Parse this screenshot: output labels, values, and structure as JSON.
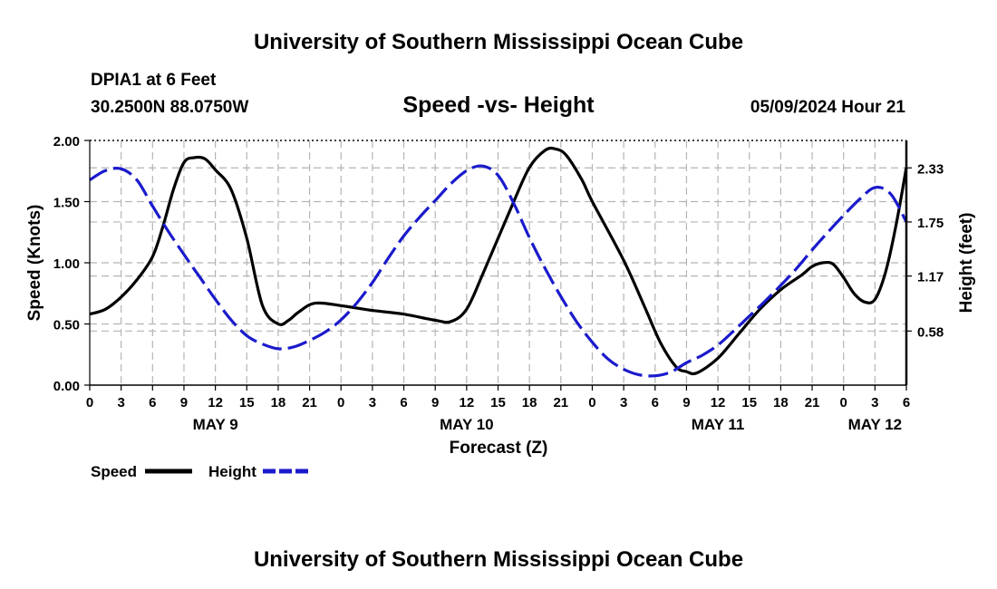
{
  "header": {
    "title": "University of Southern Mississippi Ocean Cube",
    "station": "DPIA1 at 6 Feet",
    "coords": "30.2500N  88.0750W",
    "subtitle": "Speed -vs- Height",
    "datetime": "05/09/2024 Hour 21"
  },
  "footer": {
    "title": "University of Southern Mississippi Ocean Cube"
  },
  "colors": {
    "speed": "#000000",
    "height": "#1a1acc",
    "grid": "#b4b4b4"
  },
  "legend": {
    "speed_label": "Speed",
    "height_label": "Height"
  },
  "chart_data": {
    "type": "line",
    "title": "Speed -vs- Height",
    "xlabel": "Forecast (Z)",
    "ylabel": "Speed (Knots)",
    "y2label": "Height (feet)",
    "xlim": [
      0,
      78
    ],
    "ylim": [
      0,
      2.0
    ],
    "y2lim": [
      0,
      2.624
    ],
    "x_ticks": [
      {
        "x": 0,
        "label": "0"
      },
      {
        "x": 3,
        "label": "3"
      },
      {
        "x": 6,
        "label": "6"
      },
      {
        "x": 9,
        "label": "9"
      },
      {
        "x": 12,
        "label": "12"
      },
      {
        "x": 15,
        "label": "15"
      },
      {
        "x": 18,
        "label": "18"
      },
      {
        "x": 21,
        "label": "21"
      },
      {
        "x": 24,
        "label": "0"
      },
      {
        "x": 27,
        "label": "3"
      },
      {
        "x": 30,
        "label": "6"
      },
      {
        "x": 33,
        "label": "9"
      },
      {
        "x": 36,
        "label": "12"
      },
      {
        "x": 39,
        "label": "15"
      },
      {
        "x": 42,
        "label": "18"
      },
      {
        "x": 45,
        "label": "21"
      },
      {
        "x": 48,
        "label": "0"
      },
      {
        "x": 51,
        "label": "3"
      },
      {
        "x": 54,
        "label": "6"
      },
      {
        "x": 57,
        "label": "9"
      },
      {
        "x": 60,
        "label": "12"
      },
      {
        "x": 63,
        "label": "15"
      },
      {
        "x": 66,
        "label": "18"
      },
      {
        "x": 69,
        "label": "21"
      },
      {
        "x": 72,
        "label": "0"
      },
      {
        "x": 75,
        "label": "3"
      },
      {
        "x": 78,
        "label": "6"
      }
    ],
    "date_labels": [
      {
        "x": 12,
        "label": "MAY 9"
      },
      {
        "x": 36,
        "label": "MAY 10"
      },
      {
        "x": 60,
        "label": "MAY 11"
      },
      {
        "x": 75,
        "label": "MAY 12"
      }
    ],
    "y_ticks": [
      {
        "y": 0.0,
        "label": "0.00"
      },
      {
        "y": 0.5,
        "label": "0.50"
      },
      {
        "y": 1.0,
        "label": "1.00"
      },
      {
        "y": 1.5,
        "label": "1.50"
      },
      {
        "y": 2.0,
        "label": "2.00"
      }
    ],
    "y2_ticks": [
      {
        "y": 0.58,
        "label": "0.58"
      },
      {
        "y": 1.17,
        "label": "1.17"
      },
      {
        "y": 1.75,
        "label": "1.75"
      },
      {
        "y": 2.33,
        "label": "2.33"
      }
    ],
    "series": [
      {
        "name": "Speed",
        "axis": "left",
        "style": "solid",
        "x": [
          0,
          1.5,
          3,
          4.5,
          6,
          7,
          8,
          9,
          10,
          11,
          12,
          13.5,
          15,
          16.5,
          18,
          19,
          20,
          21.5,
          24,
          27,
          30,
          33,
          34.5,
          36,
          37.5,
          39,
          40.5,
          42,
          43.5,
          44.5,
          45.5,
          47,
          48,
          51,
          53,
          54.5,
          56,
          57,
          58,
          60,
          62,
          64,
          66,
          68,
          69,
          70,
          71,
          72,
          73,
          74,
          75,
          76,
          77,
          78
        ],
        "y": [
          0.58,
          0.62,
          0.72,
          0.86,
          1.05,
          1.3,
          1.6,
          1.82,
          1.86,
          1.85,
          1.76,
          1.6,
          1.2,
          0.65,
          0.5,
          0.53,
          0.6,
          0.67,
          0.65,
          0.61,
          0.58,
          0.53,
          0.52,
          0.62,
          0.9,
          1.2,
          1.5,
          1.78,
          1.92,
          1.93,
          1.88,
          1.68,
          1.5,
          1.02,
          0.64,
          0.35,
          0.15,
          0.11,
          0.1,
          0.22,
          0.42,
          0.62,
          0.78,
          0.9,
          0.97,
          1.0,
          0.99,
          0.88,
          0.75,
          0.68,
          0.7,
          0.92,
          1.3,
          1.78
        ]
      },
      {
        "name": "Height",
        "axis": "right",
        "style": "dashed",
        "x": [
          0,
          1.5,
          3,
          4.5,
          6,
          7.5,
          9,
          10.5,
          12,
          13.5,
          15,
          16.5,
          18,
          19.5,
          21,
          22.5,
          24,
          25.5,
          27,
          28.5,
          30,
          31.5,
          33,
          34.5,
          36,
          37.5,
          39,
          40.5,
          42,
          43.5,
          45,
          46.5,
          48,
          49.5,
          51,
          52.5,
          54,
          55.5,
          57,
          58.5,
          60,
          61.5,
          63,
          64.5,
          66,
          67.5,
          69,
          70.5,
          72,
          73.5,
          75,
          76.5,
          78
        ],
        "y": [
          2.2,
          2.3,
          2.32,
          2.2,
          1.92,
          1.65,
          1.4,
          1.16,
          0.92,
          0.7,
          0.53,
          0.44,
          0.39,
          0.41,
          0.48,
          0.57,
          0.7,
          0.88,
          1.1,
          1.36,
          1.6,
          1.8,
          1.98,
          2.16,
          2.3,
          2.35,
          2.25,
          1.95,
          1.58,
          1.25,
          0.95,
          0.68,
          0.46,
          0.28,
          0.17,
          0.11,
          0.1,
          0.14,
          0.24,
          0.32,
          0.43,
          0.58,
          0.74,
          0.9,
          1.07,
          1.25,
          1.45,
          1.64,
          1.82,
          1.99,
          2.12,
          2.05,
          1.75
        ]
      }
    ]
  }
}
